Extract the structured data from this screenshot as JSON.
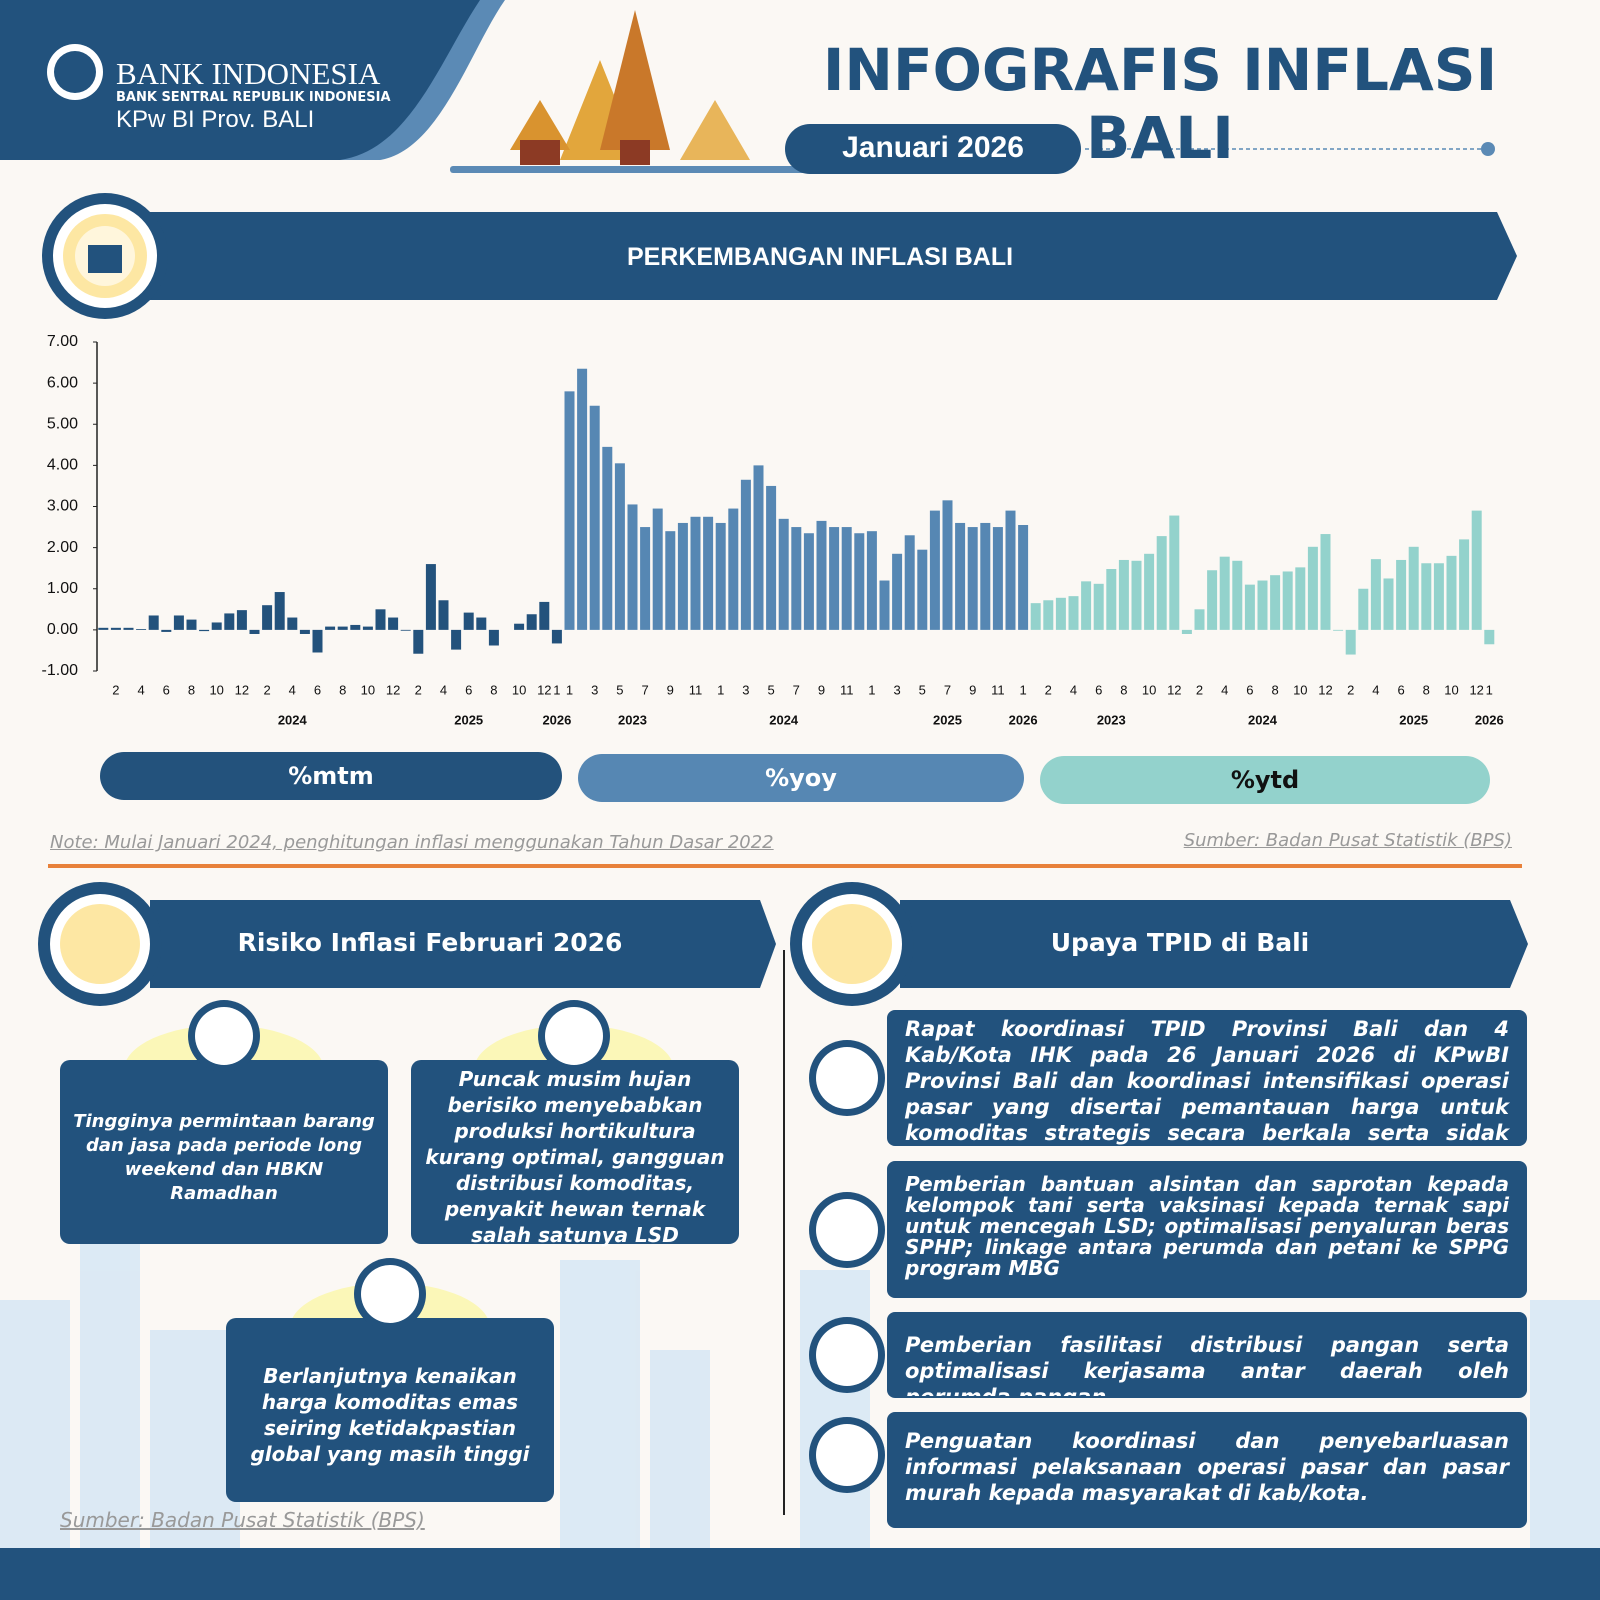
{
  "header": {
    "bank": "BANK INDONESIA",
    "bank_subtitle": "BANK SENTRAL REPUBLIK INDONESIA",
    "office": "KPw BI Prov. BALI",
    "title": "INFOGRAFIS INFLASI BALI",
    "period": "Januari 2026"
  },
  "chart_section": {
    "title": "PERKEMBANGAN INFLASI BALI",
    "note": "Note: Mulai Januari 2024, penghitungan inflasi menggunakan Tahun Dasar 2022",
    "source": "Sumber: Badan Pusat Statistik (BPS)"
  },
  "chart_data": {
    "type": "bar",
    "ylim": [
      -1,
      7
    ],
    "yticks": [
      {
        "value": -1,
        "label": "-1.00"
      },
      {
        "value": 0,
        "label": "0.00"
      },
      {
        "value": 1,
        "label": "1.00"
      },
      {
        "value": 2,
        "label": "2.00"
      },
      {
        "value": 3,
        "label": "3.00"
      },
      {
        "value": 4,
        "label": "4.00"
      },
      {
        "value": 5,
        "label": "5.00"
      },
      {
        "value": 6,
        "label": "6.00"
      },
      {
        "value": 7,
        "label": "7.00"
      }
    ],
    "series": [
      {
        "name": "%mtm",
        "color": "#23527c",
        "categories": [
          null,
          "2",
          null,
          "4",
          null,
          "6",
          null,
          "8",
          null,
          "10",
          null,
          "12",
          null,
          "2",
          null,
          "4",
          null,
          "6",
          null,
          "8",
          null,
          "10",
          null,
          "12",
          null,
          "2",
          null,
          "4",
          null,
          "6",
          null,
          "8",
          null,
          "10",
          null,
          "12",
          "1"
        ],
        "years": [
          null,
          null,
          null,
          null,
          null,
          null,
          null,
          null,
          null,
          null,
          null,
          null,
          null,
          null,
          null,
          "2024",
          null,
          null,
          null,
          null,
          null,
          null,
          null,
          null,
          null,
          null,
          null,
          null,
          null,
          "2025",
          null,
          null,
          null,
          null,
          null,
          null,
          "2026"
        ],
        "values": [
          0.05,
          0.05,
          0.05,
          0.02,
          0.35,
          -0.05,
          0.35,
          0.25,
          -0.03,
          0.18,
          0.4,
          0.48,
          -0.1,
          0.6,
          0.92,
          0.3,
          -0.1,
          -0.55,
          0.08,
          0.08,
          0.12,
          0.08,
          0.5,
          0.3,
          -0.02,
          -0.58,
          1.6,
          0.72,
          -0.48,
          0.42,
          0.3,
          -0.38,
          0.0,
          0.15,
          0.38,
          0.68,
          -0.33
        ]
      },
      {
        "name": "%yoy",
        "color": "#5687b3",
        "categories": [
          "1",
          null,
          "3",
          null,
          "5",
          null,
          "7",
          null,
          "9",
          null,
          "11",
          null,
          "1",
          null,
          "3",
          null,
          "5",
          null,
          "7",
          null,
          "9",
          null,
          "11",
          null,
          "1",
          null,
          "3",
          null,
          "5",
          null,
          "7",
          null,
          "9",
          null,
          "11",
          null,
          "1"
        ],
        "years": [
          null,
          null,
          null,
          null,
          null,
          "2023",
          null,
          null,
          null,
          null,
          null,
          null,
          null,
          null,
          null,
          null,
          null,
          "2024",
          null,
          null,
          null,
          null,
          null,
          null,
          null,
          null,
          null,
          null,
          null,
          null,
          "2025",
          null,
          null,
          null,
          null,
          null,
          "2026"
        ],
        "values": [
          5.8,
          6.35,
          5.45,
          4.45,
          4.05,
          3.05,
          2.5,
          2.95,
          2.4,
          2.6,
          2.75,
          2.75,
          2.6,
          2.95,
          3.65,
          4.0,
          3.5,
          2.7,
          2.5,
          2.35,
          2.65,
          2.5,
          2.5,
          2.35,
          2.4,
          1.2,
          1.85,
          2.3,
          1.95,
          2.9,
          3.15,
          2.6,
          2.5,
          2.6,
          2.5,
          2.9,
          2.55
        ]
      },
      {
        "name": "%ytd",
        "color": "#93d2cc",
        "categories": [
          null,
          "2",
          null,
          "4",
          null,
          "6",
          null,
          "8",
          null,
          "10",
          null,
          "12",
          null,
          "2",
          null,
          "4",
          null,
          "6",
          null,
          "8",
          null,
          "10",
          null,
          "12",
          null,
          "2",
          null,
          "4",
          null,
          "6",
          null,
          "8",
          null,
          "10",
          null,
          "12",
          "1"
        ],
        "years": [
          null,
          null,
          null,
          null,
          null,
          null,
          "2023",
          null,
          null,
          null,
          null,
          null,
          null,
          null,
          null,
          null,
          null,
          null,
          "2024",
          null,
          null,
          null,
          null,
          null,
          null,
          null,
          null,
          null,
          null,
          null,
          "2025",
          null,
          null,
          null,
          null,
          null,
          "2026"
        ],
        "values": [
          0.65,
          0.72,
          0.78,
          0.82,
          1.18,
          1.12,
          1.48,
          1.7,
          1.68,
          1.85,
          2.28,
          2.78,
          -0.1,
          0.5,
          1.45,
          1.78,
          1.68,
          1.1,
          1.2,
          1.33,
          1.42,
          1.52,
          2.02,
          2.33,
          -0.02,
          -0.6,
          1.0,
          1.72,
          1.25,
          1.7,
          2.02,
          1.62,
          1.62,
          1.8,
          2.2,
          2.9,
          -0.35
        ]
      }
    ]
  },
  "risk": {
    "title": "Risiko Inflasi Februari 2026",
    "items": [
      "Tingginya permintaan barang dan jasa pada periode long weekend dan HBKN Ramadhan",
      "Puncak musim hujan berisiko menyebabkan produksi hortikultura kurang optimal, gangguan distribusi komoditas, penyakit hewan ternak salah satunya LSD",
      "Berlanjutnya kenaikan harga komoditas emas seiring ketidakpastian global yang masih tinggi"
    ],
    "source": "Sumber: Badan Pusat Statistik (BPS)"
  },
  "efforts": {
    "title": "Upaya TPID di Bali",
    "items": [
      "Rapat koordinasi TPID Provinsi Bali dan 4 Kab/Kota IHK pada 26 Januari 2026 di KPwBI Provinsi Bali dan koordinasi intensifikasi operasi pasar yang disertai pemantauan harga untuk komoditas strategis secara berkala serta sidak pasokan",
      "Pemberian bantuan alsintan dan saprotan kepada kelompok tani serta vaksinasi kepada ternak sapi untuk mencegah LSD; optimalisasi penyaluran beras SPHP; linkage antara perumda dan petani ke SPPG program MBG",
      "Pemberian fasilitasi distribusi pangan serta optimalisasi kerjasama antar daerah oleh perumda pangan",
      "Penguatan koordinasi dan penyebarluasan informasi pelaksanaan operasi pasar dan pasar murah kepada masyarakat di kab/kota."
    ]
  }
}
